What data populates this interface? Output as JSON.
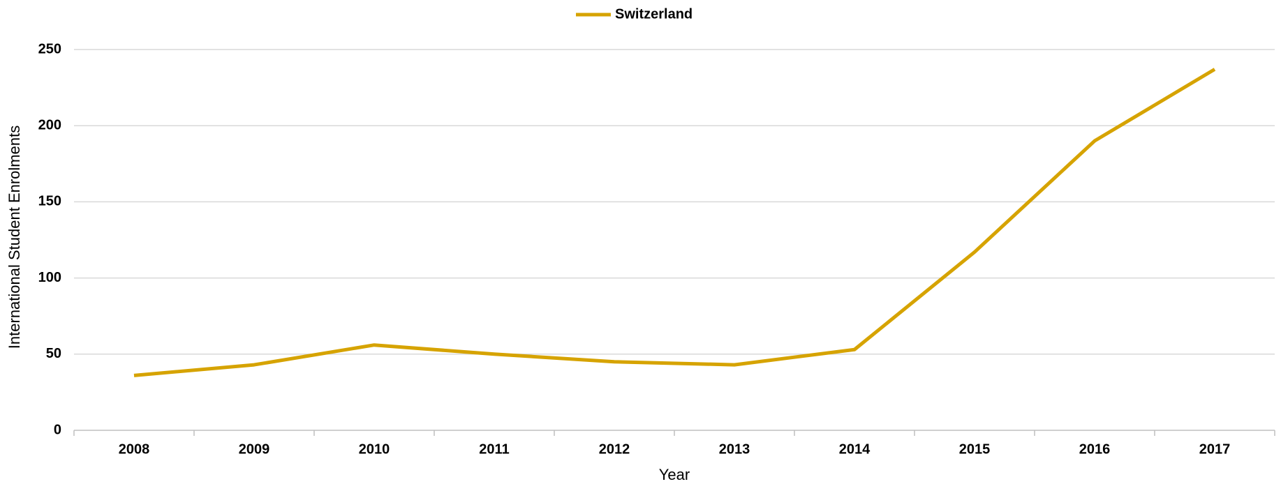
{
  "chart_data": {
    "type": "line",
    "x_label": "Year",
    "y_label": "International Student Enrolments",
    "categories": [
      "2008",
      "2009",
      "2010",
      "2011",
      "2012",
      "2013",
      "2014",
      "2015",
      "2016",
      "2017"
    ],
    "series": [
      {
        "name": "Switzerland",
        "color": "#d6a300",
        "values": [
          36,
          43,
          56,
          50,
          45,
          43,
          53,
          117,
          190,
          237
        ]
      }
    ],
    "ylim": [
      0,
      250
    ],
    "yticks": [
      0,
      50,
      100,
      150,
      200,
      250
    ],
    "grid": true,
    "legend": "top"
  }
}
